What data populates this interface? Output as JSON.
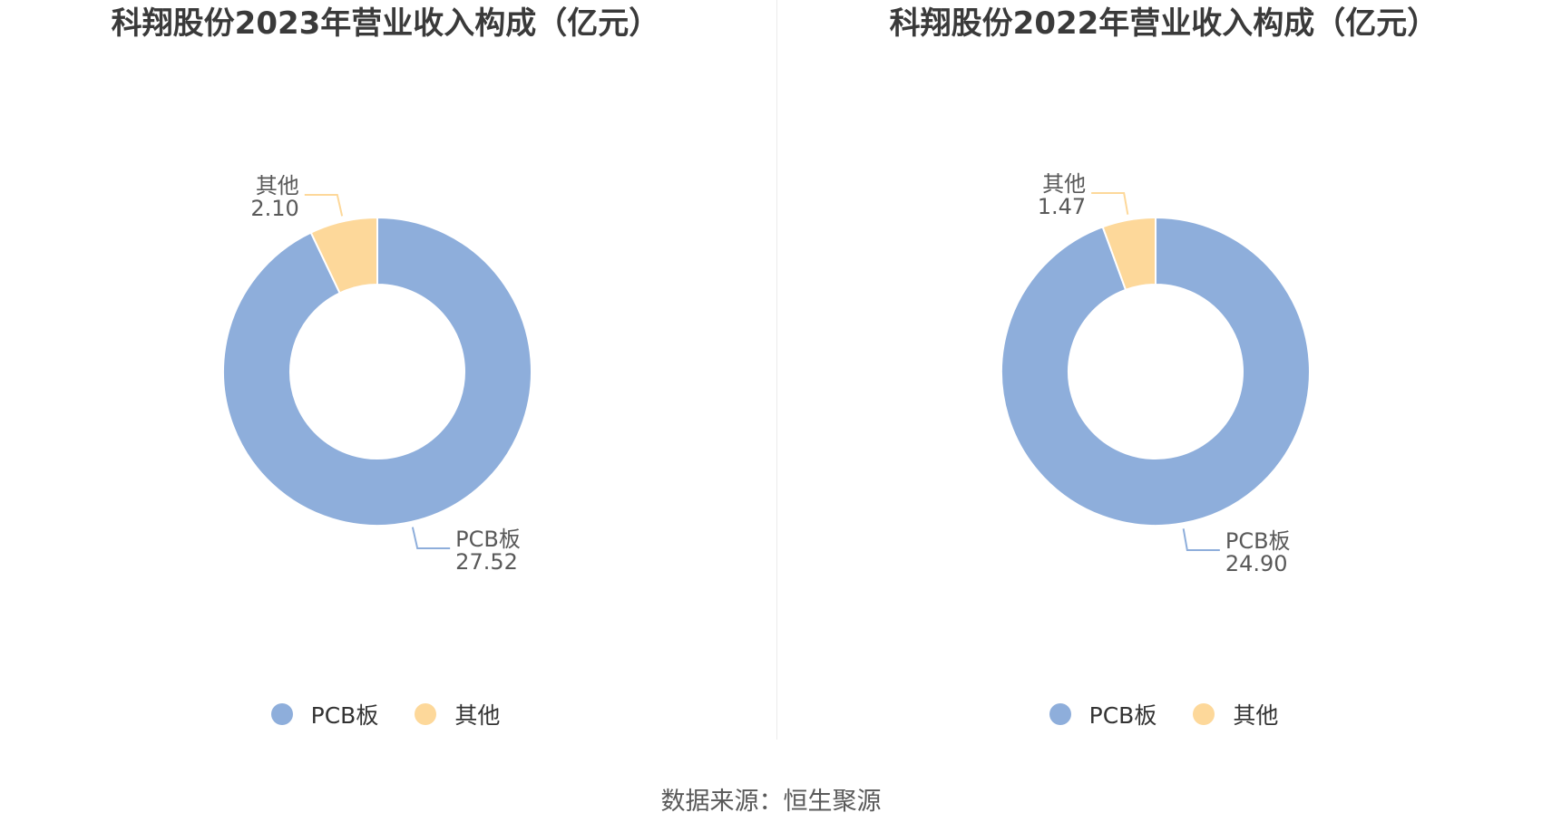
{
  "source_text": "数据来源：恒生聚源",
  "colors": {
    "PCB板": "#8eaedb",
    "其他": "#fdd89a"
  },
  "chart_data": [
    {
      "type": "pie",
      "title": "科翔股份2023年营业收入构成（亿元）",
      "categories": [
        "PCB板",
        "其他"
      ],
      "values": [
        27.52,
        2.1
      ],
      "value_labels": [
        "27.52",
        "2.10"
      ],
      "legend": {
        "position": "bottom",
        "items": [
          "PCB板",
          "其他"
        ]
      }
    },
    {
      "type": "pie",
      "title": "科翔股份2022年营业收入构成（亿元）",
      "categories": [
        "PCB板",
        "其他"
      ],
      "values": [
        24.9,
        1.47
      ],
      "value_labels": [
        "24.90",
        "1.47"
      ],
      "legend": {
        "position": "bottom",
        "items": [
          "PCB板",
          "其他"
        ]
      }
    }
  ]
}
